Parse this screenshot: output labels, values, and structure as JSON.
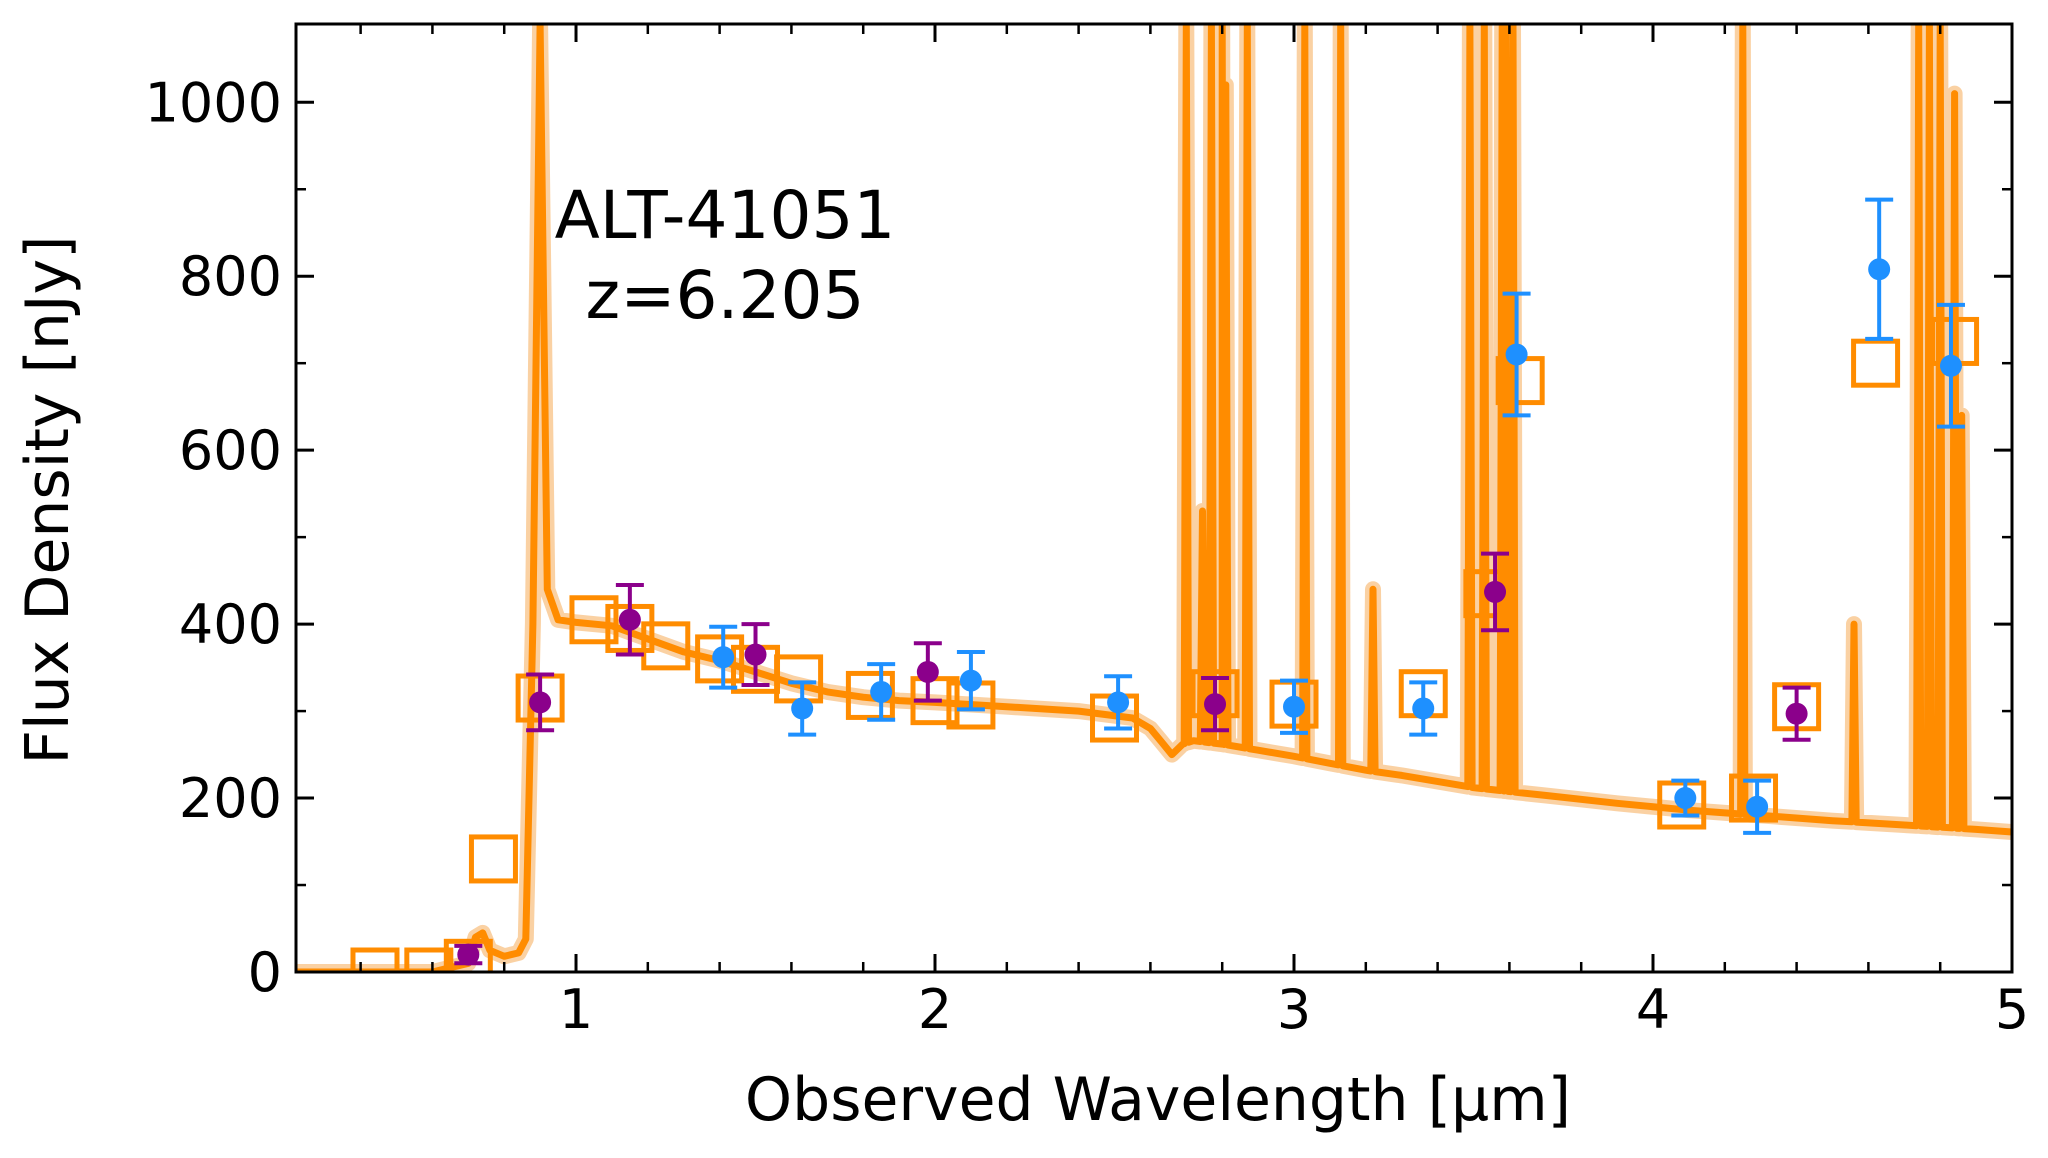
{
  "chart_data": {
    "type": "scatter",
    "xlabel": "Observed Wavelength [μm]",
    "ylabel": "Flux Density [nJy]",
    "xlim": [
      0.22,
      5.0
    ],
    "ylim": [
      0,
      1090
    ],
    "xticks": [
      1,
      2,
      3,
      4,
      5
    ],
    "xtick_labels": [
      "1",
      "2",
      "3",
      "4",
      "5"
    ],
    "yticks": [
      0,
      200,
      400,
      600,
      800,
      1000
    ],
    "ytick_labels": [
      "0",
      "200",
      "400",
      "600",
      "800",
      "1000"
    ],
    "annotation": {
      "name": "ALT-41051",
      "redshift": "z=6.205"
    },
    "colors": {
      "model": "#ff8c00",
      "model_band": "#f9c58c",
      "broadband": "#8b008b",
      "medium": "#1e90ff",
      "axes": "#000000"
    },
    "model_continuum": [
      [
        0.22,
        0
      ],
      [
        0.6,
        0
      ],
      [
        0.7,
        10
      ],
      [
        0.72,
        40
      ],
      [
        0.74,
        45
      ],
      [
        0.76,
        25
      ],
      [
        0.8,
        18
      ],
      [
        0.84,
        22
      ],
      [
        0.86,
        38
      ],
      [
        0.88,
        400
      ],
      [
        0.9,
        1090
      ],
      [
        0.92,
        440
      ],
      [
        0.95,
        405
      ],
      [
        1.0,
        402
      ],
      [
        1.1,
        398
      ],
      [
        1.2,
        383
      ],
      [
        1.3,
        368
      ],
      [
        1.4,
        358
      ],
      [
        1.5,
        345
      ],
      [
        1.6,
        332
      ],
      [
        1.7,
        322
      ],
      [
        1.8,
        316
      ],
      [
        1.9,
        312
      ],
      [
        2.0,
        310
      ],
      [
        2.2,
        305
      ],
      [
        2.4,
        300
      ],
      [
        2.55,
        292
      ],
      [
        2.6,
        280
      ],
      [
        2.63,
        265
      ],
      [
        2.66,
        250
      ],
      [
        2.69,
        262
      ],
      [
        2.72,
        266
      ],
      [
        2.8,
        262
      ],
      [
        2.9,
        255
      ],
      [
        3.0,
        248
      ],
      [
        3.1,
        240
      ],
      [
        3.2,
        232
      ],
      [
        3.3,
        226
      ],
      [
        3.5,
        212
      ],
      [
        3.7,
        203
      ],
      [
        3.9,
        194
      ],
      [
        4.1,
        186
      ],
      [
        4.3,
        180
      ],
      [
        4.5,
        174
      ],
      [
        4.7,
        169
      ],
      [
        4.9,
        164
      ],
      [
        5.0,
        161
      ]
    ],
    "emission_lines": [
      {
        "x": 2.7,
        "peak": 1090
      },
      {
        "x": 2.745,
        "peak": 530
      },
      {
        "x": 2.77,
        "peak": 1090
      },
      {
        "x": 2.8,
        "peak": 1090
      },
      {
        "x": 2.81,
        "peak": 1020
      },
      {
        "x": 2.87,
        "peak": 1090
      },
      {
        "x": 3.03,
        "peak": 1090
      },
      {
        "x": 3.13,
        "peak": 1090
      },
      {
        "x": 3.22,
        "peak": 440
      },
      {
        "x": 3.49,
        "peak": 1090
      },
      {
        "x": 3.53,
        "peak": 1090
      },
      {
        "x": 3.58,
        "peak": 1090
      },
      {
        "x": 3.59,
        "peak": 1090
      },
      {
        "x": 3.61,
        "peak": 1090
      },
      {
        "x": 4.25,
        "peak": 1090
      },
      {
        "x": 4.56,
        "peak": 400
      },
      {
        "x": 4.74,
        "peak": 1090
      },
      {
        "x": 4.77,
        "peak": 1090
      },
      {
        "x": 4.8,
        "peak": 1090
      },
      {
        "x": 4.84,
        "peak": 1010
      },
      {
        "x": 4.86,
        "peak": 640
      }
    ],
    "model_photometry": [
      {
        "x": 0.44,
        "y": 0
      },
      {
        "x": 0.59,
        "y": 0
      },
      {
        "x": 0.7,
        "y": 10
      },
      {
        "x": 0.77,
        "y": 130
      },
      {
        "x": 0.9,
        "y": 315
      },
      {
        "x": 1.05,
        "y": 405
      },
      {
        "x": 1.15,
        "y": 395
      },
      {
        "x": 1.25,
        "y": 375
      },
      {
        "x": 1.4,
        "y": 360
      },
      {
        "x": 1.5,
        "y": 348
      },
      {
        "x": 1.62,
        "y": 337
      },
      {
        "x": 1.82,
        "y": 318
      },
      {
        "x": 2.0,
        "y": 312
      },
      {
        "x": 2.1,
        "y": 307
      },
      {
        "x": 2.5,
        "y": 292
      },
      {
        "x": 2.78,
        "y": 320
      },
      {
        "x": 3.0,
        "y": 308
      },
      {
        "x": 3.36,
        "y": 320
      },
      {
        "x": 3.54,
        "y": 435
      },
      {
        "x": 3.63,
        "y": 680
      },
      {
        "x": 4.08,
        "y": 192
      },
      {
        "x": 4.28,
        "y": 200
      },
      {
        "x": 4.4,
        "y": 305
      },
      {
        "x": 4.62,
        "y": 700
      },
      {
        "x": 4.84,
        "y": 725
      }
    ],
    "series": [
      {
        "name": "broadband",
        "points": [
          {
            "x": 0.7,
            "y": 20,
            "err": 10
          },
          {
            "x": 0.9,
            "y": 310,
            "err": 32
          },
          {
            "x": 1.15,
            "y": 405,
            "err": 40
          },
          {
            "x": 1.5,
            "y": 365,
            "err": 35
          },
          {
            "x": 1.98,
            "y": 345,
            "err": 33
          },
          {
            "x": 2.78,
            "y": 308,
            "err": 30
          },
          {
            "x": 3.56,
            "y": 437,
            "err": 44
          },
          {
            "x": 4.4,
            "y": 297,
            "err": 30
          }
        ]
      },
      {
        "name": "medium_band",
        "points": [
          {
            "x": 1.41,
            "y": 362,
            "err": 35
          },
          {
            "x": 1.63,
            "y": 303,
            "err": 30
          },
          {
            "x": 1.85,
            "y": 322,
            "err": 32
          },
          {
            "x": 2.1,
            "y": 335,
            "err": 33
          },
          {
            "x": 2.51,
            "y": 310,
            "err": 30
          },
          {
            "x": 3.0,
            "y": 305,
            "err": 30
          },
          {
            "x": 3.36,
            "y": 303,
            "err": 30
          },
          {
            "x": 3.62,
            "y": 710,
            "err": 70
          },
          {
            "x": 4.09,
            "y": 200,
            "err": 20
          },
          {
            "x": 4.29,
            "y": 190,
            "err": 30
          },
          {
            "x": 4.63,
            "y": 808,
            "err": 80
          },
          {
            "x": 4.83,
            "y": 697,
            "err": 70
          }
        ]
      }
    ]
  }
}
